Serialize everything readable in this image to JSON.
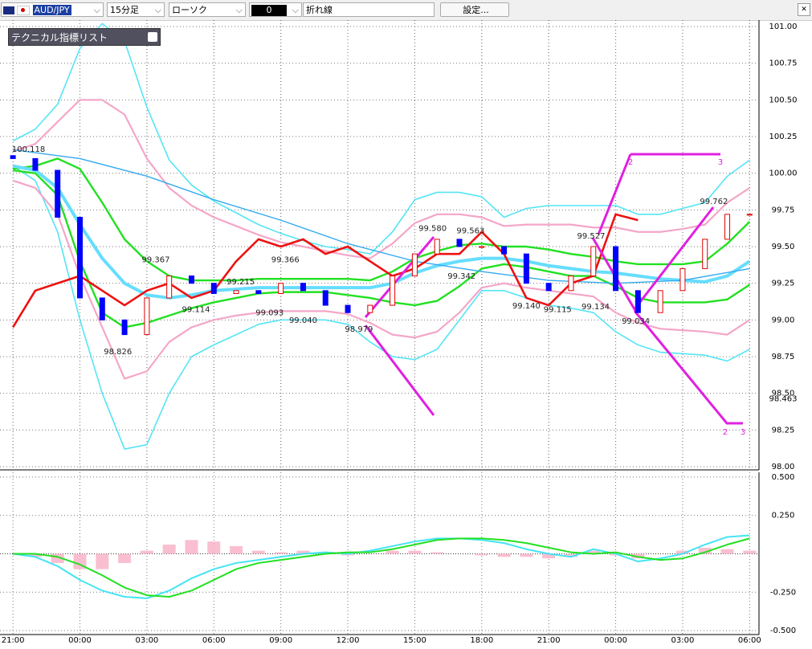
{
  "toolbar": {
    "symbol": "AUD/JPY",
    "timeframe": "15分足",
    "chart_style": "ローソク",
    "color_box": "0",
    "line_style": "折れ線",
    "settings_button": "設定..."
  },
  "indicator_panel": "テクニカル指標リスト",
  "wave_labels": [
    "2",
    "3",
    "2",
    "3"
  ],
  "chart_data": [
    {
      "type": "candlestick",
      "x": [
        0,
        1,
        2,
        3,
        4,
        5,
        6,
        7,
        8,
        9,
        10,
        11,
        12,
        13,
        14,
        15,
        16,
        17,
        18,
        19,
        20,
        21,
        22,
        23,
        24,
        25,
        26,
        27,
        28,
        29,
        30,
        31,
        32,
        33
      ],
      "open": [
        100.12,
        100.1,
        100.02,
        99.7,
        99.15,
        99.0,
        98.9,
        99.15,
        99.3,
        99.25,
        99.18,
        99.2,
        99.18,
        99.25,
        99.2,
        99.1,
        99.05,
        99.1,
        99.3,
        99.45,
        99.55,
        99.5,
        99.5,
        99.45,
        99.25,
        99.2,
        99.3,
        99.5,
        99.2,
        99.05,
        99.2,
        99.35,
        99.55,
        99.72
      ],
      "close": [
        100.1,
        100.02,
        99.7,
        99.15,
        99.0,
        98.9,
        99.15,
        99.3,
        99.25,
        99.18,
        99.2,
        99.18,
        99.25,
        99.2,
        99.1,
        99.05,
        99.1,
        99.3,
        99.45,
        99.55,
        99.5,
        99.5,
        99.45,
        99.25,
        99.2,
        99.3,
        99.5,
        99.2,
        99.05,
        99.2,
        99.35,
        99.55,
        99.72,
        99.72
      ],
      "up_color": "#e00000",
      "down_color": "#0000ff",
      "series": [
        {
          "color": "#55e5f5",
          "width": 1.6,
          "x": [
            0,
            1,
            2,
            3,
            4,
            5,
            6,
            7,
            8,
            9,
            10,
            11,
            12,
            13,
            14,
            15,
            16,
            17,
            18,
            19,
            20,
            21,
            22,
            23,
            24,
            25,
            26,
            27,
            28,
            29,
            30,
            31,
            32,
            33
          ],
          "values": [
            100.22,
            100.3,
            100.47,
            100.85,
            101.02,
            100.9,
            100.45,
            100.09,
            99.92,
            99.81,
            99.73,
            99.65,
            99.59,
            99.54,
            99.5,
            99.48,
            99.45,
            99.6,
            99.82,
            99.87,
            99.87,
            99.84,
            99.7,
            99.76,
            99.78,
            99.78,
            99.78,
            99.78,
            99.72,
            99.72,
            99.76,
            99.8,
            99.98,
            100.09
          ]
        },
        {
          "color": "#55e5f5",
          "width": 1.6,
          "x": [
            0,
            1,
            2,
            3,
            4,
            5,
            6,
            7,
            8,
            9,
            10,
            11,
            12,
            13,
            14,
            15,
            16,
            17,
            18,
            19,
            20,
            21,
            22,
            23,
            24,
            25,
            26,
            27,
            28,
            29,
            30,
            31,
            32,
            33
          ],
          "values": [
            100.05,
            99.95,
            99.6,
            99.0,
            98.5,
            98.12,
            98.15,
            98.5,
            98.75,
            98.83,
            98.9,
            98.97,
            99.0,
            99.0,
            99.0,
            98.97,
            98.85,
            98.75,
            98.73,
            98.8,
            99.0,
            99.2,
            99.2,
            99.15,
            99.1,
            99.08,
            99.05,
            98.92,
            98.83,
            98.78,
            98.77,
            98.76,
            98.72,
            98.8
          ]
        },
        {
          "color": "#f4a6c8",
          "width": 2.2,
          "x": [
            0,
            1,
            2,
            3,
            4,
            5,
            6,
            7,
            8,
            9,
            10,
            11,
            12,
            13,
            14,
            15,
            16,
            17,
            18,
            19,
            20,
            21,
            22,
            23,
            24,
            25,
            26,
            27,
            28,
            29,
            30,
            31,
            32,
            33
          ],
          "values": [
            100.15,
            100.2,
            100.35,
            100.5,
            100.5,
            100.4,
            100.1,
            99.9,
            99.78,
            99.7,
            99.64,
            99.58,
            99.53,
            99.5,
            99.47,
            99.44,
            99.42,
            99.52,
            99.66,
            99.72,
            99.72,
            99.7,
            99.64,
            99.65,
            99.65,
            99.65,
            99.63,
            99.63,
            99.6,
            99.6,
            99.62,
            99.65,
            99.8,
            99.9
          ]
        },
        {
          "color": "#f4a6c8",
          "width": 2.2,
          "x": [
            0,
            1,
            2,
            3,
            4,
            5,
            6,
            7,
            8,
            9,
            10,
            11,
            12,
            13,
            14,
            15,
            16,
            17,
            18,
            19,
            20,
            21,
            22,
            23,
            24,
            25,
            26,
            27,
            28,
            29,
            30,
            31,
            32,
            33
          ],
          "values": [
            99.95,
            99.9,
            99.72,
            99.3,
            98.95,
            98.6,
            98.65,
            98.85,
            98.95,
            99.0,
            99.03,
            99.05,
            99.06,
            99.06,
            99.06,
            99.04,
            98.98,
            98.9,
            98.88,
            98.92,
            99.05,
            99.22,
            99.25,
            99.22,
            99.2,
            99.18,
            99.16,
            99.05,
            98.98,
            98.94,
            98.93,
            98.92,
            98.9,
            99.0
          ]
        },
        {
          "color": "#22e022",
          "width": 2.4,
          "x": [
            0,
            1,
            2,
            3,
            4,
            5,
            6,
            7,
            8,
            9,
            10,
            11,
            12,
            13,
            14,
            15,
            16,
            17,
            18,
            19,
            20,
            21,
            22,
            23,
            24,
            25,
            26,
            27,
            28,
            29,
            30,
            31,
            32,
            33
          ],
          "values": [
            100.03,
            100.05,
            100.1,
            100.03,
            99.8,
            99.55,
            99.4,
            99.3,
            99.27,
            99.27,
            99.27,
            99.28,
            99.28,
            99.28,
            99.28,
            99.28,
            99.27,
            99.33,
            99.42,
            99.47,
            99.51,
            99.52,
            99.5,
            99.5,
            99.48,
            99.45,
            99.43,
            99.4,
            99.38,
            99.38,
            99.38,
            99.4,
            99.52,
            99.67
          ]
        },
        {
          "color": "#22e022",
          "width": 2.4,
          "x": [
            0,
            1,
            2,
            3,
            4,
            5,
            6,
            7,
            8,
            9,
            10,
            11,
            12,
            13,
            14,
            15,
            16,
            17,
            18,
            19,
            20,
            21,
            22,
            23,
            24,
            25,
            26,
            27,
            28,
            29,
            30,
            31,
            32,
            33
          ],
          "values": [
            100.02,
            100.0,
            99.85,
            99.4,
            99.05,
            98.95,
            98.98,
            99.03,
            99.08,
            99.12,
            99.15,
            99.18,
            99.19,
            99.19,
            99.19,
            99.17,
            99.15,
            99.12,
            99.1,
            99.13,
            99.23,
            99.35,
            99.38,
            99.36,
            99.33,
            99.3,
            99.3,
            99.23,
            99.15,
            99.12,
            99.12,
            99.12,
            99.14,
            99.24
          ]
        },
        {
          "color": "#66ddff",
          "width": 4,
          "x": [
            0,
            1,
            2,
            3,
            4,
            5,
            6,
            7,
            8,
            9,
            10,
            11,
            12,
            13,
            14,
            15,
            16,
            17,
            18,
            19,
            20,
            21,
            22,
            23,
            24,
            25,
            26,
            27,
            28,
            29,
            30,
            31,
            32,
            33
          ],
          "values": [
            100.05,
            100.02,
            99.9,
            99.65,
            99.42,
            99.25,
            99.17,
            99.15,
            99.17,
            99.2,
            99.21,
            99.22,
            99.22,
            99.22,
            99.22,
            99.22,
            99.22,
            99.25,
            99.32,
            99.37,
            99.4,
            99.42,
            99.42,
            99.4,
            99.37,
            99.35,
            99.33,
            99.32,
            99.3,
            99.28,
            99.27,
            99.26,
            99.3,
            99.4
          ]
        },
        {
          "color": "#33aaee",
          "width": 1.4,
          "x": [
            0,
            3,
            6,
            9,
            12,
            15,
            18,
            21,
            24,
            27,
            30,
            33
          ],
          "values": [
            100.16,
            100.1,
            99.98,
            99.82,
            99.68,
            99.52,
            99.4,
            99.33,
            99.27,
            99.25,
            99.27,
            99.35
          ]
        },
        {
          "color": "#ee1111",
          "width": 2.6,
          "x": [
            0,
            1,
            2,
            3,
            4,
            5,
            6,
            7,
            8,
            9,
            10,
            11,
            12,
            13,
            14,
            15,
            16,
            17,
            18,
            19,
            20,
            21,
            22,
            23,
            24,
            25,
            26,
            27,
            28
          ],
          "values": [
            98.95,
            99.2,
            99.25,
            99.3,
            99.2,
            99.1,
            99.2,
            99.25,
            99.15,
            99.2,
            99.4,
            99.55,
            99.5,
            99.55,
            99.45,
            99.5,
            99.4,
            99.3,
            99.35,
            99.45,
            99.45,
            99.6,
            99.45,
            99.15,
            99.1,
            99.25,
            99.3,
            99.72,
            99.68
          ]
        }
      ],
      "annotations": [
        {
          "x": 0.7,
          "value": 100.118,
          "label": "100.118"
        },
        {
          "x": 4.7,
          "value": 98.826,
          "label": "98.826"
        },
        {
          "x": 6.4,
          "value": 99.367,
          "label": "99.367"
        },
        {
          "x": 8.2,
          "value": 99.114,
          "label": "99.114"
        },
        {
          "x": 10.2,
          "value": 99.215,
          "label": "99.215"
        },
        {
          "x": 11.5,
          "value": 99.093,
          "label": "99.093"
        },
        {
          "x": 12.2,
          "value": 99.366,
          "label": "99.366"
        },
        {
          "x": 13,
          "value": 99.04,
          "label": "99.040"
        },
        {
          "x": 15.5,
          "value": 98.979,
          "label": "98.979"
        },
        {
          "x": 18.8,
          "value": 99.58,
          "label": "99.580"
        },
        {
          "x": 20.5,
          "value": 99.563,
          "label": "99.563"
        },
        {
          "x": 20.1,
          "value": 99.342,
          "label": "99.342"
        },
        {
          "x": 23,
          "value": 99.14,
          "label": "99.140"
        },
        {
          "x": 24.4,
          "value": 99.115,
          "label": "99.115"
        },
        {
          "x": 25.9,
          "value": 99.527,
          "label": "99.527"
        },
        {
          "x": 26.1,
          "value": 99.134,
          "label": "99.134"
        },
        {
          "x": 27.9,
          "value": 99.034,
          "label": "99.034"
        },
        {
          "x": 31.4,
          "value": 99.762,
          "label": "99.762"
        }
      ],
      "current_price": {
        "value": 98.463,
        "label": "98.463"
      },
      "xlim": [
        -0.58,
        33.42
      ],
      "xticks": [
        {
          "value": 0,
          "label": "21:00"
        },
        {
          "value": 3,
          "label": "00:00"
        },
        {
          "value": 6,
          "label": "03:00"
        },
        {
          "value": 9,
          "label": "06:00"
        },
        {
          "value": 12,
          "label": "09:00"
        },
        {
          "value": 15,
          "label": "12:00"
        },
        {
          "value": 18,
          "label": "15:00"
        },
        {
          "value": 21,
          "label": "18:00"
        },
        {
          "value": 24,
          "label": "21:00"
        },
        {
          "value": 27,
          "label": "00:00"
        },
        {
          "value": 30,
          "label": "03:00"
        },
        {
          "value": 33,
          "label": "06:00"
        }
      ],
      "ylim": [
        97.978,
        101.044
      ],
      "yticks": [
        {
          "value": 98,
          "label": "98.00"
        },
        {
          "value": 98.25,
          "label": "98.25"
        },
        {
          "value": 98.5,
          "label": "98.50"
        },
        {
          "value": 98.75,
          "label": "98.75"
        },
        {
          "value": 99,
          "label": "99.00"
        },
        {
          "value": 99.25,
          "label": "99.25"
        },
        {
          "value": 99.5,
          "label": "99.50"
        },
        {
          "value": 99.75,
          "label": "99.75"
        },
        {
          "value": 100,
          "label": "100.00"
        },
        {
          "value": 100.25,
          "label": "100.25"
        },
        {
          "value": 100.5,
          "label": "100.50"
        },
        {
          "value": 100.75,
          "label": "100.75"
        },
        {
          "value": 101,
          "label": "101.00"
        }
      ],
      "grid": true
    },
    {
      "type": "macd",
      "x": [
        0,
        1,
        2,
        3,
        4,
        5,
        6,
        7,
        8,
        9,
        10,
        11,
        12,
        13,
        14,
        15,
        16,
        17,
        18,
        19,
        20,
        21,
        22,
        23,
        24,
        25,
        26,
        27,
        28,
        29,
        30,
        31,
        32,
        33
      ],
      "histogram": {
        "color": "#f8b4c8",
        "values": [
          0,
          -0.02,
          -0.06,
          -0.1,
          -0.1,
          -0.06,
          0.02,
          0.06,
          0.09,
          0.08,
          0.05,
          0.02,
          0.01,
          0.02,
          0.01,
          -0.01,
          0,
          0.02,
          0.02,
          0.01,
          0,
          -0.01,
          -0.02,
          -0.02,
          -0.03,
          -0.02,
          0.02,
          -0.01,
          -0.03,
          0,
          0.02,
          0.04,
          0.03,
          0.02
        ]
      },
      "series": [
        {
          "color": "#44e4f4",
          "values": [
            0,
            -0.02,
            -0.08,
            -0.17,
            -0.24,
            -0.28,
            -0.29,
            -0.24,
            -0.16,
            -0.1,
            -0.06,
            -0.04,
            -0.02,
            0,
            0.01,
            0,
            0.02,
            0.05,
            0.08,
            0.1,
            0.1,
            0.09,
            0.07,
            0.03,
            0,
            -0.02,
            0.03,
            0,
            -0.05,
            -0.03,
            0,
            0.06,
            0.11,
            0.12
          ]
        },
        {
          "color": "#22e022",
          "values": [
            0,
            0,
            -0.02,
            -0.07,
            -0.14,
            -0.22,
            -0.27,
            -0.28,
            -0.24,
            -0.17,
            -0.1,
            -0.06,
            -0.04,
            -0.02,
            0,
            0.01,
            0.01,
            0.03,
            0.06,
            0.09,
            0.1,
            0.1,
            0.09,
            0.07,
            0.04,
            0.01,
            0,
            0.01,
            -0.02,
            -0.04,
            -0.03,
            0.01,
            0.06,
            0.1
          ]
        }
      ],
      "xlim": [
        -0.58,
        33.42
      ],
      "ylim": [
        -0.526,
        0.531
      ],
      "yticks": [
        {
          "value": -0.5,
          "label": "-0.500"
        },
        {
          "value": -0.25,
          "label": "-0.250"
        },
        {
          "value": 0.25,
          "label": "0.250"
        },
        {
          "value": 0.5,
          "label": "0.500"
        }
      ]
    }
  ]
}
